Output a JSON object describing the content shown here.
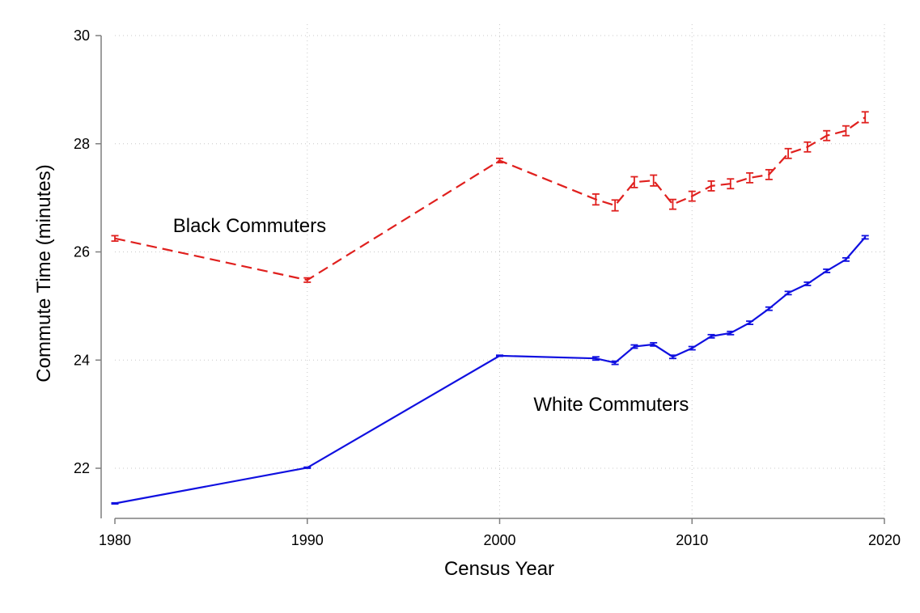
{
  "chart_data": {
    "type": "line",
    "title": "",
    "xlabel": "Census Year",
    "ylabel": "Commute Time (minutes)",
    "xlim": [
      1980,
      2020
    ],
    "ylim": [
      21.0,
      30.0
    ],
    "xticks": [
      1980,
      1990,
      2000,
      2010,
      2020
    ],
    "yticks": [
      22,
      24,
      26,
      28,
      30
    ],
    "grid": true,
    "error_bars": true,
    "annotations": [
      {
        "text": "Black Commuters",
        "x": 1987,
        "y": 26.5
      },
      {
        "text": "White Commuters",
        "x": 2005.8,
        "y": 23.2
      }
    ],
    "series": [
      {
        "name": "Black Commuters",
        "color": "#e0201e",
        "dash": "dashed",
        "x": [
          1980,
          1990,
          2000,
          2005,
          2006,
          2007,
          2008,
          2009,
          2010,
          2011,
          2012,
          2013,
          2014,
          2015,
          2016,
          2017,
          2018,
          2019
        ],
        "y": [
          26.25,
          25.48,
          27.69,
          26.97,
          26.86,
          27.29,
          27.32,
          26.88,
          27.03,
          27.22,
          27.26,
          27.37,
          27.43,
          27.82,
          27.94,
          28.15,
          28.24,
          28.49
        ],
        "err": [
          0.05,
          0.04,
          0.04,
          0.1,
          0.1,
          0.1,
          0.1,
          0.09,
          0.09,
          0.09,
          0.09,
          0.09,
          0.09,
          0.09,
          0.09,
          0.09,
          0.09,
          0.1
        ]
      },
      {
        "name": "White Commuters",
        "color": "#1010e0",
        "dash": "solid",
        "x": [
          1980,
          1990,
          2000,
          2005,
          2006,
          2007,
          2008,
          2009,
          2010,
          2011,
          2012,
          2013,
          2014,
          2015,
          2016,
          2017,
          2018,
          2019
        ],
        "y": [
          21.35,
          22.01,
          24.08,
          24.03,
          23.95,
          24.25,
          24.29,
          24.06,
          24.22,
          24.44,
          24.5,
          24.69,
          24.95,
          25.24,
          25.41,
          25.65,
          25.86,
          26.27
        ],
        "err": [
          0.01,
          0.01,
          0.01,
          0.03,
          0.03,
          0.03,
          0.03,
          0.03,
          0.03,
          0.03,
          0.03,
          0.03,
          0.03,
          0.03,
          0.03,
          0.03,
          0.03,
          0.03
        ]
      }
    ]
  }
}
